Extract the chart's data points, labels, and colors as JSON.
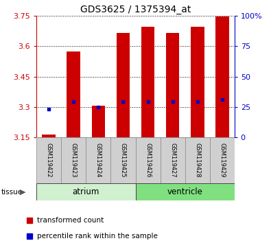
{
  "title": "GDS3625 / 1375394_at",
  "samples": [
    "GSM119422",
    "GSM119423",
    "GSM119424",
    "GSM119425",
    "GSM119426",
    "GSM119427",
    "GSM119428",
    "GSM119429"
  ],
  "red_top": [
    3.165,
    3.575,
    3.305,
    3.665,
    3.695,
    3.665,
    3.695,
    3.745
  ],
  "red_bottom": [
    3.15,
    3.15,
    3.15,
    3.15,
    3.15,
    3.15,
    3.15,
    3.15
  ],
  "blue_values": [
    3.29,
    3.325,
    3.3,
    3.325,
    3.325,
    3.325,
    3.325,
    3.335
  ],
  "ylim": [
    3.15,
    3.75
  ],
  "yticks_left": [
    3.15,
    3.3,
    3.45,
    3.6,
    3.75
  ],
  "yticks_right_labels": [
    "0",
    "25",
    "50",
    "75",
    "100%"
  ],
  "groups": [
    {
      "label": "atrium",
      "start": 0,
      "end": 4,
      "color": "#d0f0d0"
    },
    {
      "label": "ventricle",
      "start": 4,
      "end": 8,
      "color": "#80e080"
    }
  ],
  "tissue_label": "tissue",
  "bar_color": "#cc0000",
  "blue_color": "#0000cc",
  "legend_red": "transformed count",
  "legend_blue": "percentile rank within the sample",
  "axis_color_left": "#cc0000",
  "axis_color_right": "#0000cc"
}
